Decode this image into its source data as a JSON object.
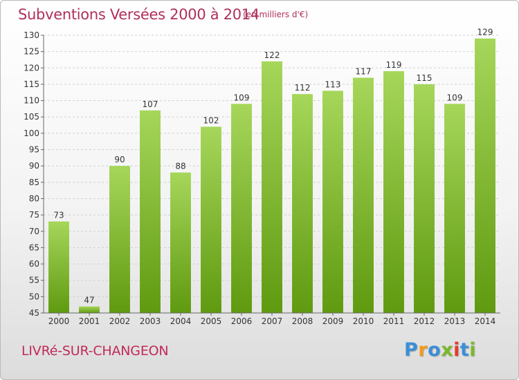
{
  "title": "Subventions Versées 2000 à 2014",
  "unit_note": "(en milliers d'€)",
  "commune": "LIVRé-SUR-CHANGEON",
  "logo": {
    "text": "Proxiti",
    "letters": [
      "P",
      "r",
      "o",
      "x",
      "i",
      "t",
      "i"
    ],
    "letter_colors": [
      "#3a8fd6",
      "#f29a1b",
      "#3a8fd6",
      "#7ab829",
      "#e63b2e",
      "#3a8fd6",
      "#7ab829"
    ]
  },
  "colors": {
    "title": "#b0305c",
    "bar_top": "#a6d65a",
    "bar_bottom": "#5f9a10",
    "grid": "#cfcfcf"
  },
  "chart_data": {
    "type": "bar",
    "categories": [
      "2000",
      "2001",
      "2002",
      "2003",
      "2004",
      "2005",
      "2006",
      "2007",
      "2008",
      "2009",
      "2010",
      "2011",
      "2012",
      "2013",
      "2014"
    ],
    "values": [
      73,
      47,
      90,
      107,
      88,
      102,
      109,
      122,
      112,
      113,
      117,
      119,
      115,
      109,
      129
    ],
    "title": "Subventions Versées 2000 à 2014",
    "xlabel": "",
    "ylabel": "",
    "ylim": [
      45,
      130
    ],
    "yticks": [
      45,
      50,
      55,
      60,
      65,
      70,
      75,
      80,
      85,
      90,
      95,
      100,
      105,
      110,
      115,
      120,
      125,
      130
    ],
    "grid": true
  }
}
